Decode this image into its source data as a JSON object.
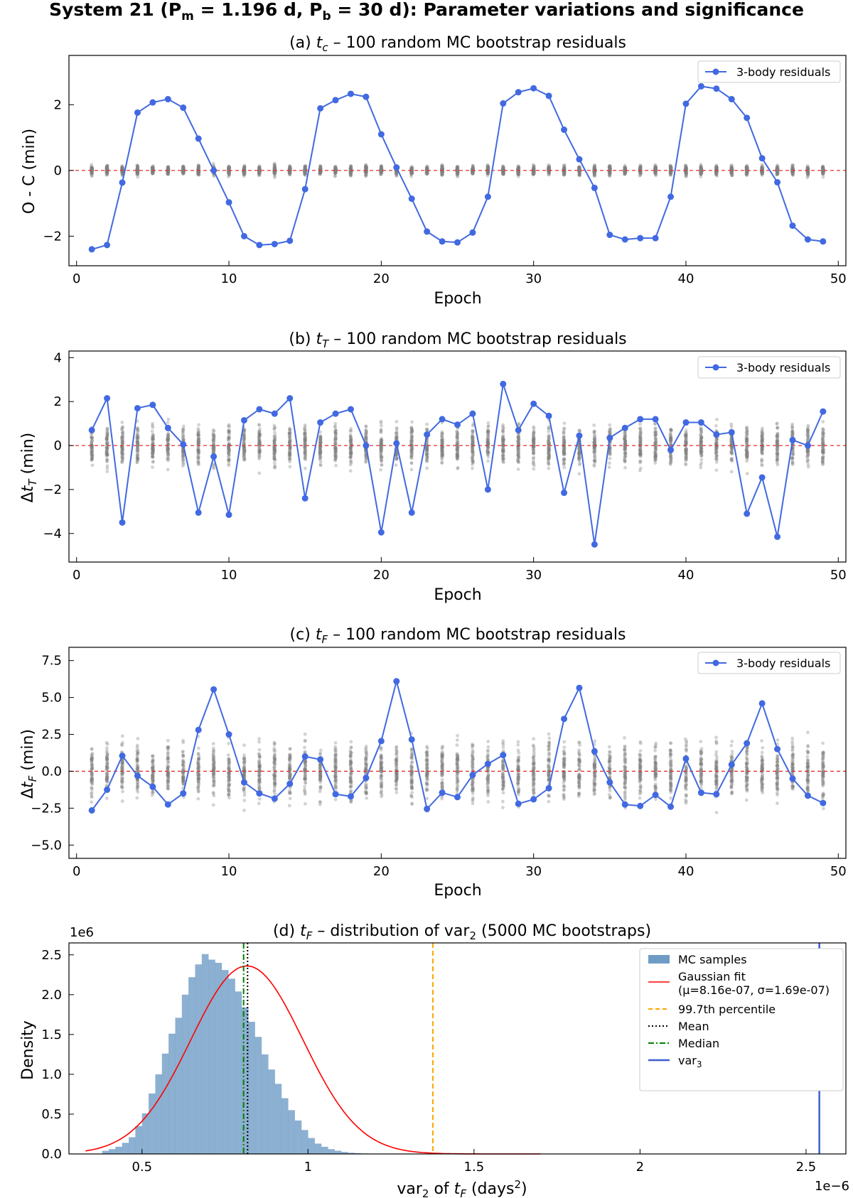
{
  "figure": {
    "suptitle_prefix": "System 21 (",
    "suptitle_pm_sym": "P",
    "suptitle_pm_sub": "m",
    "suptitle_pm_val": " = 1.196 d, ",
    "suptitle_pb_sym": "P",
    "suptitle_pb_sub": "b",
    "suptitle_pb_val": " = 30 d): Parameter variations and significance"
  },
  "colors": {
    "line": "#4169e1",
    "scatter": "#808080",
    "zero": "#e03030",
    "hist": "#6f9cc6",
    "gauss": "#ff0000",
    "p997": "#ffa500",
    "mean": "#000000",
    "median": "#008000",
    "var3": "#3a5fcd"
  },
  "chart_data": [
    {
      "type": "scatter",
      "id": "a",
      "title_prefix": "(a) ",
      "title_var": "t",
      "title_sub": "c",
      "title_suffix": " – 100 random MC bootstrap residuals",
      "xlabel": "Epoch",
      "ylabel": "O - C (min)",
      "xlim": [
        -0.5,
        50.5
      ],
      "ylim": [
        -2.9,
        3.5
      ],
      "xticks": [
        0,
        10,
        20,
        30,
        40,
        50
      ],
      "yticks": [
        -2,
        0,
        2
      ],
      "scatter_spread": 0.2,
      "legend": "3-body residuals",
      "series": [
        {
          "name": "3-body residuals",
          "x": [
            1,
            2,
            3,
            4,
            5,
            6,
            7,
            8,
            9,
            10,
            11,
            12,
            13,
            14,
            15,
            16,
            17,
            18,
            19,
            20,
            21,
            22,
            23,
            24,
            25,
            26,
            27,
            28,
            29,
            30,
            31,
            32,
            33,
            34,
            35,
            36,
            37,
            38,
            39,
            40,
            41,
            42,
            43,
            44,
            45,
            46,
            47,
            48,
            49
          ],
          "y": [
            -2.4,
            -2.27,
            -0.37,
            1.76,
            2.07,
            2.17,
            1.91,
            0.97,
            0.0,
            -0.97,
            -2.0,
            -2.27,
            -2.24,
            -2.14,
            -0.57,
            1.89,
            2.14,
            2.33,
            2.24,
            1.1,
            0.09,
            -0.86,
            -1.86,
            -2.16,
            -2.19,
            -1.89,
            -0.8,
            2.04,
            2.38,
            2.5,
            2.27,
            1.24,
            0.34,
            -0.53,
            -1.96,
            -2.1,
            -2.06,
            -2.06,
            -0.8,
            2.03,
            2.56,
            2.49,
            2.17,
            1.6,
            0.37,
            -0.36,
            -1.68,
            -2.1,
            -2.16
          ]
        }
      ]
    },
    {
      "type": "scatter",
      "id": "b",
      "title_prefix": "(b) ",
      "title_var": "t",
      "title_sub": "T",
      "title_suffix": " – 100 random MC bootstrap residuals",
      "xlabel": "Epoch",
      "ylabel_prefix": "Δ",
      "ylabel_var": "t",
      "ylabel_sub": "T",
      "ylabel_suffix": " (min)",
      "xlim": [
        -0.5,
        50.5
      ],
      "ylim": [
        -5.3,
        4.3
      ],
      "xticks": [
        0,
        10,
        20,
        30,
        40,
        50
      ],
      "yticks": [
        -4,
        -2,
        0,
        2,
        4
      ],
      "scatter_spread": 1.3,
      "legend": "3-body residuals",
      "series": [
        {
          "name": "3-body residuals",
          "x": [
            1,
            2,
            3,
            4,
            5,
            6,
            7,
            8,
            9,
            10,
            11,
            12,
            13,
            14,
            15,
            16,
            17,
            18,
            19,
            20,
            21,
            22,
            23,
            24,
            25,
            26,
            27,
            28,
            29,
            30,
            31,
            32,
            33,
            34,
            35,
            36,
            37,
            38,
            39,
            40,
            41,
            42,
            43,
            44,
            45,
            46,
            47,
            48,
            49
          ],
          "y": [
            0.7,
            2.15,
            -3.5,
            1.7,
            1.85,
            0.8,
            0.05,
            -3.05,
            -0.5,
            -3.15,
            1.15,
            1.65,
            1.45,
            2.15,
            -2.4,
            1.05,
            1.45,
            1.65,
            0.0,
            -3.95,
            0.1,
            -3.05,
            0.5,
            1.2,
            0.95,
            1.45,
            -2.0,
            2.8,
            0.7,
            1.9,
            1.35,
            -2.15,
            0.45,
            -4.5,
            0.35,
            0.8,
            1.2,
            1.2,
            -0.2,
            1.05,
            1.05,
            0.5,
            0.6,
            -3.1,
            -1.45,
            -4.15,
            0.25,
            0.0,
            1.55
          ]
        }
      ]
    },
    {
      "type": "scatter",
      "id": "c",
      "title_prefix": "(c) ",
      "title_var": "t",
      "title_sub": "F",
      "title_suffix": " – 100 random MC bootstrap residuals",
      "xlabel": "Epoch",
      "ylabel_prefix": "Δ",
      "ylabel_var": "t",
      "ylabel_sub": "F",
      "ylabel_suffix": " (min)",
      "xlim": [
        -0.5,
        50.5
      ],
      "ylim": [
        -5.9,
        8.4
      ],
      "xticks": [
        0,
        10,
        20,
        30,
        40,
        50
      ],
      "yticks": [
        -5.0,
        -2.5,
        0.0,
        2.5,
        5.0,
        7.5
      ],
      "ytick_labels": [
        "−5.0",
        "−2.5",
        "0.0",
        "2.5",
        "5.0",
        "7.5"
      ],
      "scatter_spread": 2.6,
      "legend": "3-body residuals",
      "series": [
        {
          "name": "3-body residuals",
          "x": [
            1,
            2,
            3,
            4,
            5,
            6,
            7,
            8,
            9,
            10,
            11,
            12,
            13,
            14,
            15,
            16,
            17,
            18,
            19,
            20,
            21,
            22,
            23,
            24,
            25,
            26,
            27,
            28,
            29,
            30,
            31,
            32,
            33,
            34,
            35,
            36,
            37,
            38,
            39,
            40,
            41,
            42,
            43,
            44,
            45,
            46,
            47,
            48,
            49
          ],
          "y": [
            -2.65,
            -1.25,
            1.05,
            -0.3,
            -1.05,
            -2.25,
            -1.5,
            2.8,
            5.55,
            2.5,
            -0.75,
            -1.5,
            -1.85,
            -0.85,
            1.0,
            0.8,
            -1.55,
            -1.7,
            -0.45,
            2.05,
            6.1,
            2.15,
            -2.55,
            -1.45,
            -1.75,
            -0.25,
            0.5,
            1.1,
            -2.2,
            -1.9,
            -1.15,
            3.55,
            5.65,
            1.35,
            -0.75,
            -2.25,
            -2.35,
            -1.6,
            -2.4,
            0.85,
            -1.45,
            -1.55,
            0.45,
            1.9,
            4.6,
            1.5,
            -0.5,
            -1.65,
            -2.15
          ]
        }
      ]
    },
    {
      "type": "bar",
      "id": "d",
      "title_prefix": "(d) ",
      "title_var": "t",
      "title_sub": "F",
      "title_suffix": " – distribution of var",
      "title_sub2": "2",
      "title_suffix2": " (5000 MC bootstraps)",
      "xlabel_prefix": "var",
      "xlabel_sub": "2",
      "xlabel_mid": " of ",
      "xlabel_var": "t",
      "xlabel_sub2": "F",
      "xlabel_suffix": " (days",
      "xlabel_sup": "2",
      "xlabel_end": ")",
      "ylabel": "Density",
      "x_offset": "1e−6",
      "y_offset": "1e6",
      "xlim": [
        0.28,
        2.62
      ],
      "ylim": [
        0,
        2.65
      ],
      "xticks": [
        0.5,
        1.0,
        1.5,
        2.0,
        2.5
      ],
      "yticks": [
        0.0,
        0.5,
        1.0,
        1.5,
        2.0,
        2.5
      ],
      "bin_start": 0.38,
      "bin_width": 0.02,
      "values": [
        0.04,
        0.06,
        0.09,
        0.14,
        0.21,
        0.35,
        0.51,
        0.76,
        1.0,
        1.26,
        1.51,
        1.71,
        2.0,
        2.22,
        2.38,
        2.51,
        2.44,
        2.4,
        2.31,
        2.2,
        2.04,
        1.84,
        1.66,
        1.47,
        1.25,
        1.06,
        0.88,
        0.7,
        0.55,
        0.42,
        0.3,
        0.2,
        0.13,
        0.09,
        0.06,
        0.04,
        0.025,
        0.015,
        0.01,
        0.006,
        0.004
      ],
      "gaussian": {
        "mu": 0.816,
        "sigma": 0.169,
        "x_from": 0.33,
        "x_to": 1.7
      },
      "lines": {
        "p997": 1.376,
        "mean": 0.818,
        "median": 0.806,
        "var3": 2.54
      },
      "legend": [
        {
          "label": "MC samples"
        },
        {
          "label_l1": "Gaussian fit",
          "label_l2": "(μ=8.16e-07, σ=1.69e-07)"
        },
        {
          "label": "99.7th percentile"
        },
        {
          "label": "Mean"
        },
        {
          "label": "Median"
        },
        {
          "label_prefix": "var",
          "label_sub": "3"
        }
      ]
    }
  ]
}
